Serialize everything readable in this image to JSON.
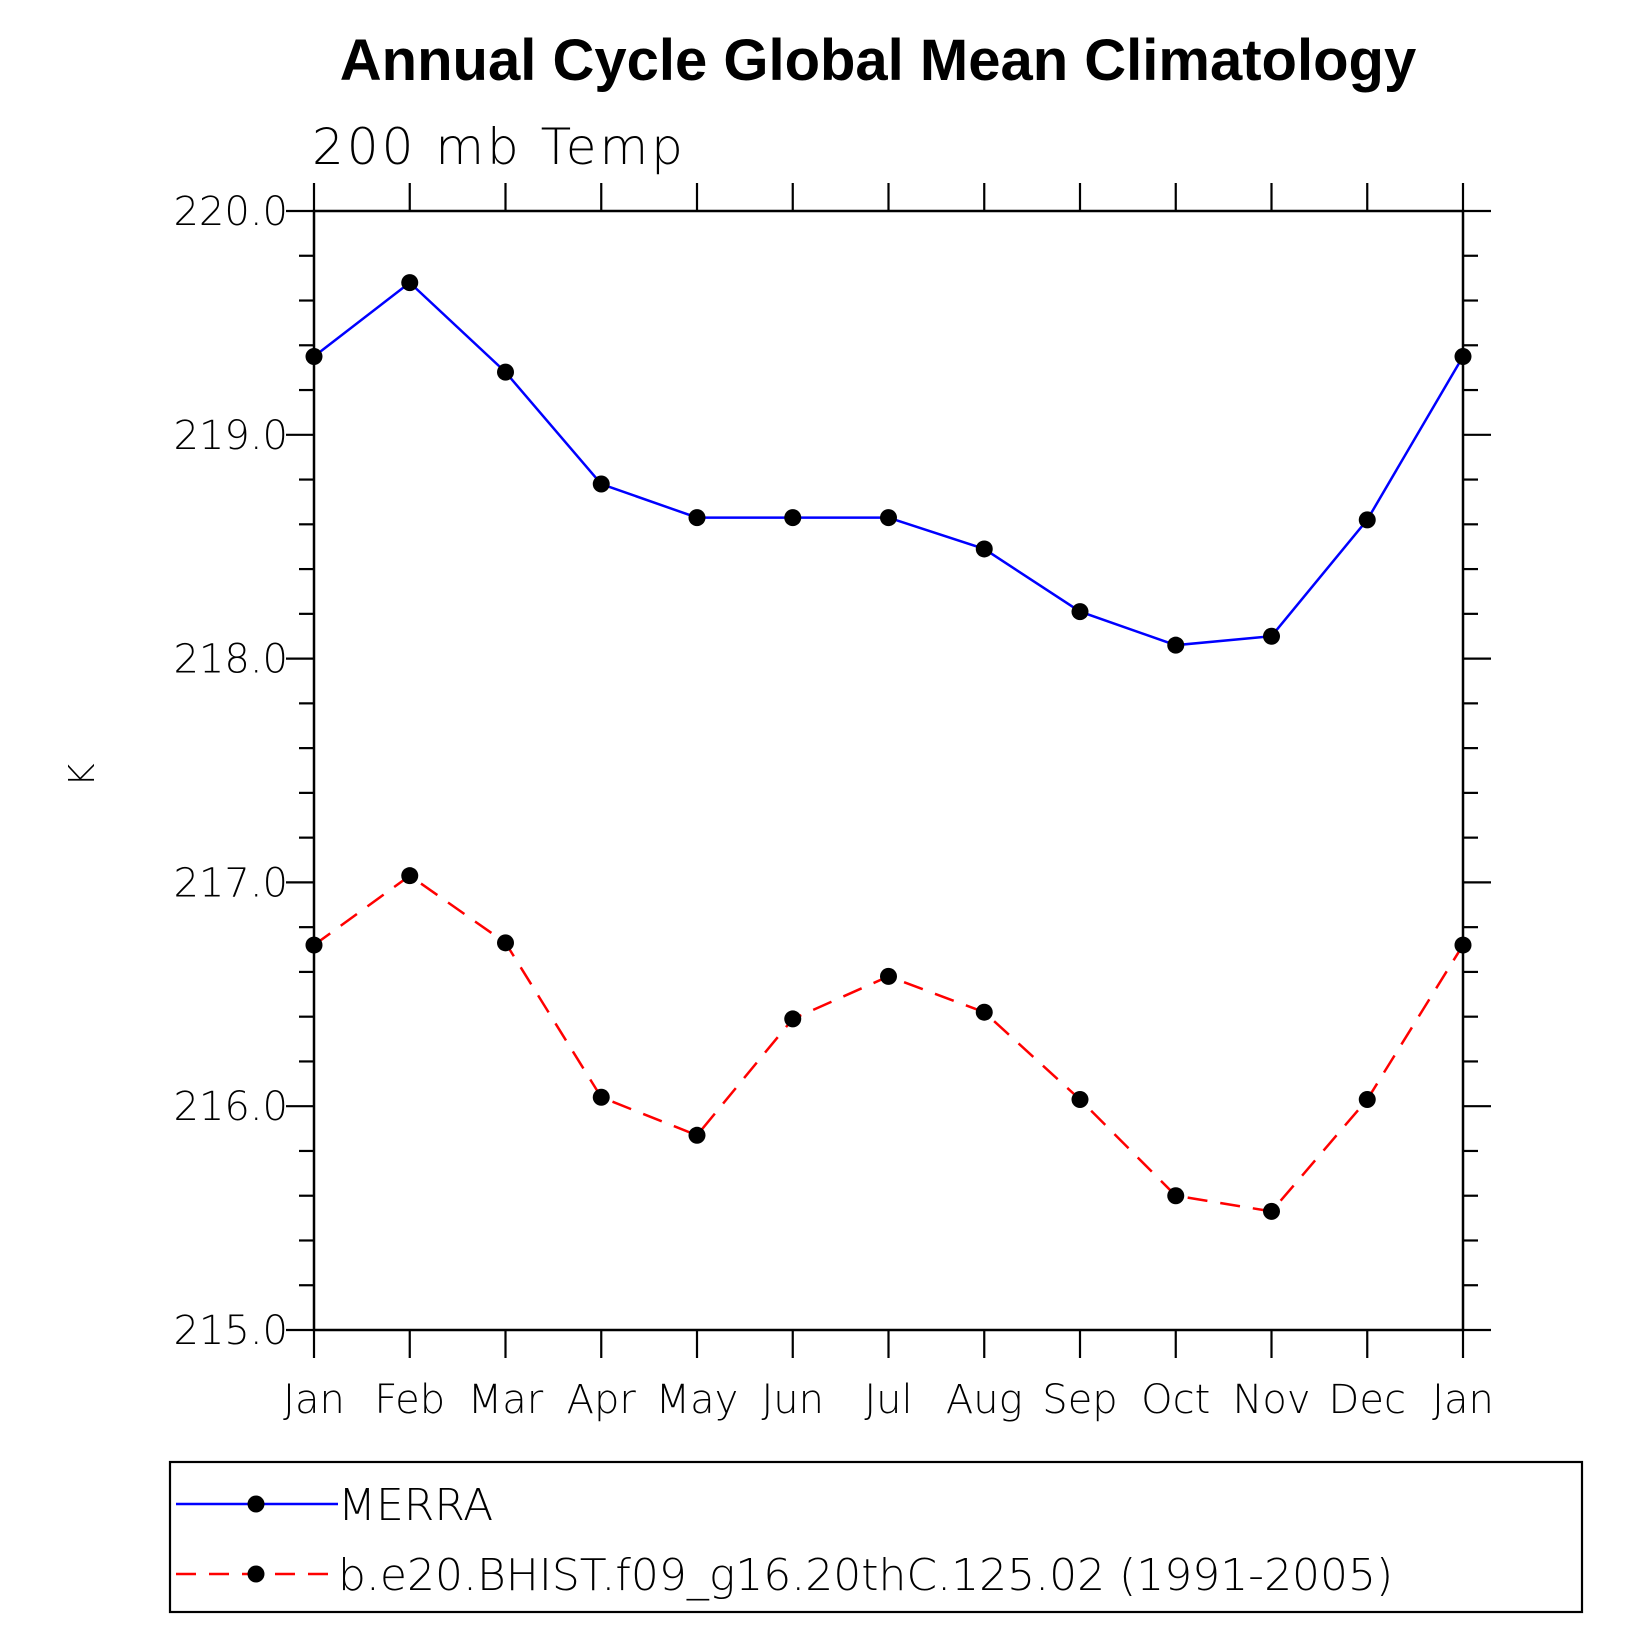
{
  "chart_data": {
    "type": "line",
    "title": "Annual Cycle Global Mean Climatology",
    "subtitle": "200 mb Temp",
    "xlabel": "",
    "ylabel": "K",
    "categories": [
      "Jan",
      "Feb",
      "Mar",
      "Apr",
      "May",
      "Jun",
      "Jul",
      "Aug",
      "Sep",
      "Oct",
      "Nov",
      "Dec",
      "Jan"
    ],
    "ylim": [
      215.0,
      220.0
    ],
    "yticks": [
      "215.0",
      "216.0",
      "217.0",
      "218.0",
      "219.0",
      "220.0"
    ],
    "yminor_step": 0.2,
    "grid": false,
    "legend_position": "bottom",
    "series": [
      {
        "name": "MERRA",
        "color": "#0000ff",
        "line_style": "solid",
        "marker": "filled-circle",
        "values": [
          219.35,
          219.68,
          219.28,
          218.78,
          218.63,
          218.63,
          218.63,
          218.49,
          218.21,
          218.06,
          218.1,
          218.62,
          219.35
        ]
      },
      {
        "name": "b.e20.BHIST.f09_g16.20thC.125.02 (1991-2005)",
        "color": "#ff0000",
        "line_style": "dashed",
        "marker": "filled-circle",
        "values": [
          216.72,
          217.03,
          216.73,
          216.04,
          215.87,
          216.39,
          216.58,
          216.42,
          216.03,
          215.6,
          215.53,
          216.03,
          216.72
        ]
      }
    ]
  }
}
